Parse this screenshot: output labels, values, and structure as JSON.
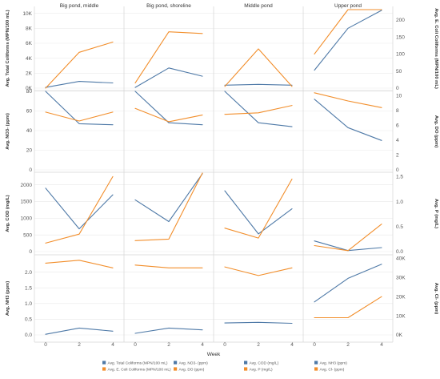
{
  "chart_data": {
    "type": "line",
    "columns": [
      "Big pond, middle",
      "Big pond, shoreline",
      "Middle pond",
      "Upper pond"
    ],
    "x": [
      0,
      2,
      4
    ],
    "xticks": [
      "0",
      "2",
      "4"
    ],
    "xlabel": "Week",
    "colors": {
      "blue": "#4e79a7",
      "orange": "#f28e2b"
    },
    "rows": [
      {
        "left": {
          "label": "Avg. Total Coliforms (MPN/100 mL)",
          "range": [
            0,
            10500
          ],
          "ticks": [
            0,
            2000,
            4000,
            6000,
            8000,
            10000
          ],
          "tick_labels": [
            "0K",
            "2K",
            "4K",
            "6K",
            "8K",
            "10K"
          ]
        },
        "right": {
          "label": "Avg. E. Coli Coliforms (MPN/100 mL)",
          "range": [
            0,
            230
          ],
          "ticks": [
            0,
            50,
            100,
            150,
            200
          ],
          "tick_labels": [
            "0",
            "50",
            "100",
            "150",
            "200"
          ]
        },
        "series": [
          {
            "axis": "left",
            "color": "blue",
            "values": [
              [
                100,
                900,
                700
              ],
              [
                100,
                2700,
                1600
              ],
              [
                400,
                500,
                400
              ],
              [
                2400,
                8000,
                10400
              ]
            ]
          },
          {
            "axis": "right",
            "color": "orange",
            "values": [
              [
                0,
                105,
                135
              ],
              [
                15,
                165,
                160
              ],
              [
                5,
                115,
                5
              ],
              [
                100,
                230,
                230
              ]
            ]
          }
        ]
      },
      {
        "left": {
          "label": "Avg. NO3- (ppm)",
          "range": [
            0,
            80
          ],
          "ticks": [
            0,
            20,
            40,
            60,
            80
          ],
          "tick_labels": [
            "0",
            "20",
            "40",
            "60",
            "80"
          ]
        },
        "right": {
          "label": "Avg. DO (ppm)",
          "range": [
            0,
            10.6
          ],
          "ticks": [
            0,
            2,
            4,
            6,
            8,
            10
          ],
          "tick_labels": [
            "0",
            "2",
            "4",
            "6",
            "8",
            "10"
          ]
        },
        "series": [
          {
            "axis": "left",
            "color": "blue",
            "values": [
              [
                80,
                47,
                46
              ],
              [
                80,
                48,
                46
              ],
              [
                80,
                48,
                44
              ],
              [
                72,
                43,
                30
              ]
            ]
          },
          {
            "axis": "right",
            "color": "orange",
            "values": [
              [
                7.8,
                6.6,
                7.8
              ],
              [
                8.3,
                6.5,
                7.4
              ],
              [
                7.5,
                7.7,
                8.7
              ],
              [
                10.4,
                9.3,
                8.4
              ]
            ]
          }
        ]
      },
      {
        "left": {
          "label": "Avg. COD (mg/L)",
          "range": [
            0,
            2350
          ],
          "ticks": [
            0,
            500,
            1000,
            1500,
            2000
          ],
          "tick_labels": [
            "0",
            "500",
            "1000",
            "1500",
            "2000"
          ]
        },
        "right": {
          "label": "Avg. P (mg/L)",
          "range": [
            0,
            1.57
          ],
          "ticks": [
            0,
            0.5,
            1.0,
            1.5
          ],
          "tick_labels": [
            "0.0",
            "0.5",
            "1.0",
            "1.5"
          ]
        },
        "series": [
          {
            "axis": "left",
            "color": "blue",
            "values": [
              [
                1900,
                680,
                1700
              ],
              [
                1550,
                900,
                2330
              ],
              [
                1820,
                530,
                1280
              ],
              [
                320,
                30,
                120
              ]
            ]
          },
          {
            "axis": "right",
            "color": "orange",
            "values": [
              [
                0.17,
                0.35,
                1.5
              ],
              [
                0.22,
                0.25,
                1.57
              ],
              [
                0.47,
                0.27,
                1.45
              ],
              [
                0.12,
                0.02,
                0.55
              ]
            ]
          }
        ]
      },
      {
        "left": {
          "label": "Avg. NH3 (ppm)",
          "range": [
            0,
            2.5
          ],
          "ticks": [
            0,
            0.5,
            1.0,
            1.5,
            2.0
          ],
          "tick_labels": [
            "0.0",
            "0.5",
            "1.0",
            "1.5",
            "2.0"
          ]
        },
        "right": {
          "label": "Avg. Cl- (ppm)",
          "range": [
            0,
            41000
          ],
          "ticks": [
            0,
            10000,
            20000,
            30000,
            40000
          ],
          "tick_labels": [
            "0K",
            "10K",
            "20K",
            "30K",
            "40K"
          ]
        },
        "series": [
          {
            "axis": "left",
            "color": "blue",
            "values": [
              [
                0.02,
                0.22,
                0.12
              ],
              [
                0.05,
                0.22,
                0.16
              ],
              [
                0.38,
                0.4,
                0.37
              ],
              [
                1.05,
                1.8,
                2.25
              ]
            ]
          },
          {
            "axis": "right",
            "color": "orange",
            "values": [
              [
                37500,
                39000,
                35000
              ],
              [
                36500,
                35000,
                35000
              ],
              [
                35500,
                31000,
                35000
              ],
              [
                9000,
                9000,
                20000
              ]
            ]
          }
        ]
      }
    ],
    "legend": [
      {
        "label": "Avg. Total Coliforms (MPN/100 mL)",
        "color": "blue"
      },
      {
        "label": "Avg. E. Coli Coliforms (MPN/100 mL)",
        "color": "orange"
      },
      {
        "label": "Avg. NO3- (ppm)",
        "color": "blue"
      },
      {
        "label": "Avg. DO (ppm)",
        "color": "orange"
      },
      {
        "label": "Avg. COD (mg/L)",
        "color": "blue"
      },
      {
        "label": "Avg. P (mg/L)",
        "color": "orange"
      },
      {
        "label": "Avg. NH3 (ppm)",
        "color": "blue"
      },
      {
        "label": "Avg. Cl- (ppm)",
        "color": "orange"
      }
    ],
    "legend_position": "bottom",
    "grid": true
  }
}
